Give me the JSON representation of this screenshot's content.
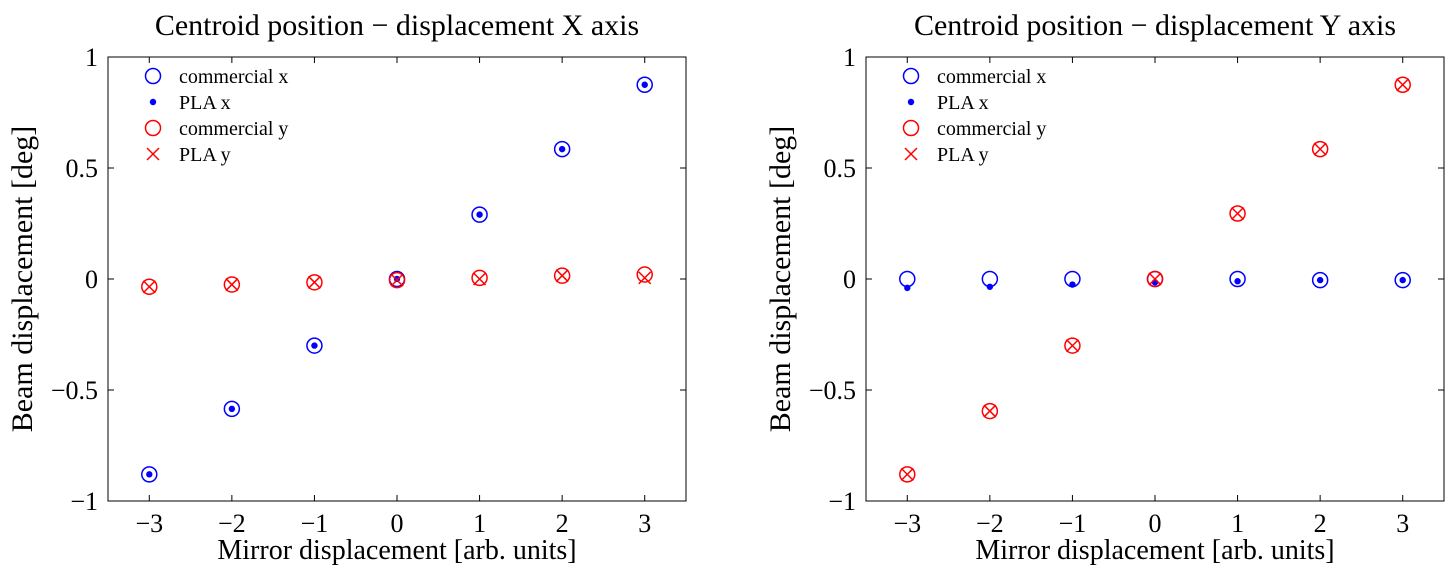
{
  "chart_data": [
    {
      "type": "scatter",
      "title": "Centroid position − displacement X axis",
      "xlabel": "Mirror displacement [arb. units]",
      "ylabel": "Beam displacement [deg]",
      "xlim": [
        -3.5,
        3.5
      ],
      "ylim": [
        -1,
        1
      ],
      "xticks": [
        -3,
        -2,
        -1,
        0,
        1,
        2,
        3
      ],
      "xtick_labels": [
        "−3",
        "−2",
        "−1",
        "0",
        "1",
        "2",
        "3"
      ],
      "yticks": [
        -1,
        -0.5,
        0,
        0.5,
        1
      ],
      "ytick_labels": [
        "−1",
        "−0.5",
        "0",
        "0.5",
        "1"
      ],
      "grid": false,
      "legend_position": "top-left",
      "x": [
        -3,
        -2,
        -1,
        0,
        1,
        2,
        3
      ],
      "series": [
        {
          "name": "commercial x",
          "marker": "circle-open",
          "color": "#0000ff",
          "values": [
            -0.88,
            -0.585,
            -0.3,
            0.0,
            0.29,
            0.585,
            0.875
          ]
        },
        {
          "name": "PLA x",
          "marker": "dot",
          "color": "#0000ff",
          "values": [
            -0.88,
            -0.585,
            -0.3,
            0.0,
            0.29,
            0.585,
            0.875
          ]
        },
        {
          "name": "commercial y",
          "marker": "circle-open",
          "color": "#ff0000",
          "values": [
            -0.035,
            -0.025,
            -0.015,
            -0.005,
            0.005,
            0.015,
            0.02
          ]
        },
        {
          "name": "PLA y",
          "marker": "x",
          "color": "#ff0000",
          "values": [
            -0.035,
            -0.025,
            -0.015,
            -0.005,
            0.0,
            0.015,
            0.005
          ]
        }
      ]
    },
    {
      "type": "scatter",
      "title": "Centroid position − displacement Y axis",
      "xlabel": "Mirror displacement [arb. units]",
      "ylabel": "Beam displacement [deg]",
      "xlim": [
        -3.5,
        3.5
      ],
      "ylim": [
        -1,
        1
      ],
      "xticks": [
        -3,
        -2,
        -1,
        0,
        1,
        2,
        3
      ],
      "xtick_labels": [
        "−3",
        "−2",
        "−1",
        "0",
        "1",
        "2",
        "3"
      ],
      "yticks": [
        -1,
        -0.5,
        0,
        0.5,
        1
      ],
      "ytick_labels": [
        "−1",
        "−0.5",
        "0",
        "0.5",
        "1"
      ],
      "grid": false,
      "legend_position": "top-left",
      "x": [
        -3,
        -2,
        -1,
        0,
        1,
        2,
        3
      ],
      "series": [
        {
          "name": "commercial x",
          "marker": "circle-open",
          "color": "#0000ff",
          "values": [
            0.0,
            0.0,
            0.0,
            0.0,
            0.0,
            -0.005,
            -0.005
          ]
        },
        {
          "name": "PLA x",
          "marker": "dot",
          "color": "#0000ff",
          "values": [
            -0.04,
            -0.035,
            -0.025,
            -0.015,
            -0.01,
            -0.005,
            -0.005
          ]
        },
        {
          "name": "commercial y",
          "marker": "circle-open",
          "color": "#ff0000",
          "values": [
            -0.88,
            -0.595,
            -0.3,
            0.0,
            0.295,
            0.585,
            0.875
          ]
        },
        {
          "name": "PLA y",
          "marker": "x",
          "color": "#ff0000",
          "values": [
            -0.88,
            -0.595,
            -0.3,
            0.0,
            0.295,
            0.585,
            0.875
          ]
        }
      ]
    }
  ]
}
